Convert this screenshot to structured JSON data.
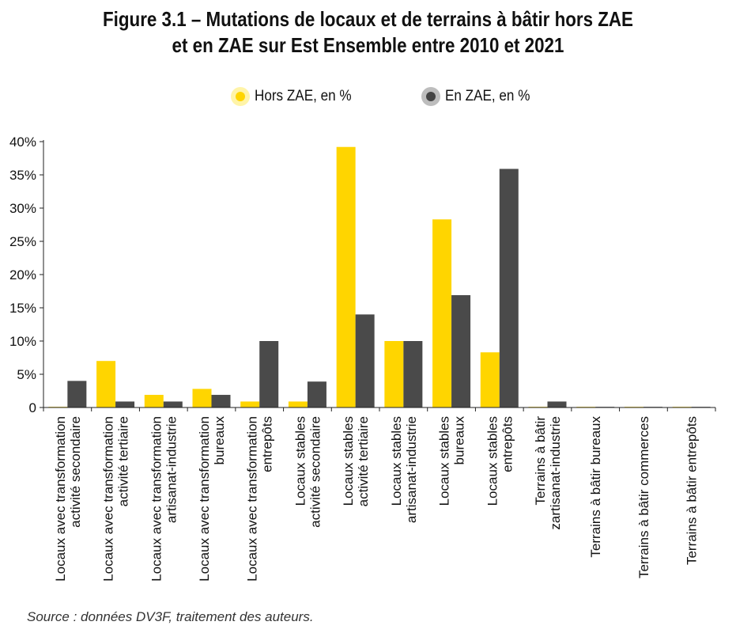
{
  "chart_data": {
    "type": "bar",
    "title_lines": [
      "Figure 3.1 – Mutations de locaux et de terrains à bâtir hors ZAE",
      "et en ZAE sur Est Ensemble entre 2010 et 2021"
    ],
    "categories": [
      [
        "Locaux avec transformation",
        "activité secondaire"
      ],
      [
        "Locaux avec transformation",
        "activité tertiaire"
      ],
      [
        "Locaux avec transformation",
        "artisanat-industrie"
      ],
      [
        "Locaux avec transformation",
        "bureaux"
      ],
      [
        "Locaux avec transformation",
        "entrepôts"
      ],
      [
        "Locaux stables",
        "activité secondaire"
      ],
      [
        "Locaux stables",
        "activité tertiaire"
      ],
      [
        "Locaux stables",
        "artisanat-industrie"
      ],
      [
        "Locaux stables",
        "bureaux"
      ],
      [
        "Locaux stables",
        "entrepôts"
      ],
      [
        "Terrains à bâtir",
        "zartisanat-industrie"
      ],
      [
        "Terrains à bâtir bureaux"
      ],
      [
        "Terrains à bâtir commerces"
      ],
      [
        "Terrains à bâtir entrepôts"
      ]
    ],
    "series": [
      {
        "name": "Hors ZAE, en %",
        "color": "#FFD500",
        "values": [
          0.1,
          7,
          1.9,
          2.8,
          0.9,
          0.9,
          39.2,
          10,
          28.3,
          8.3,
          0.1,
          0.1,
          0.1,
          0.1
        ]
      },
      {
        "name": "En ZAE, en %",
        "color": "#4A4A4A",
        "values": [
          4,
          0.9,
          0.9,
          1.9,
          10,
          3.9,
          14,
          10,
          16.9,
          35.9,
          0.9,
          0.1,
          0.1,
          0.1
        ]
      }
    ],
    "ylim": [
      0,
      40
    ],
    "yticks": [
      0,
      5,
      10,
      15,
      20,
      25,
      30,
      35,
      40
    ],
    "ytick_labels": [
      "0",
      "5%",
      "10%",
      "15%",
      "20%",
      "25%",
      "30%",
      "35%",
      "40%"
    ],
    "grid": false,
    "legend": "top-center"
  },
  "legend": {
    "hors_label": "Hors ZAE, en %",
    "en_label": "En ZAE, en %",
    "hors_color": "#FFD500",
    "hors_ring": "#FFF4A8",
    "en_color": "#444444",
    "en_ring": "#BDBDBD"
  },
  "source": "Source : données DV3F, traitement des auteurs."
}
